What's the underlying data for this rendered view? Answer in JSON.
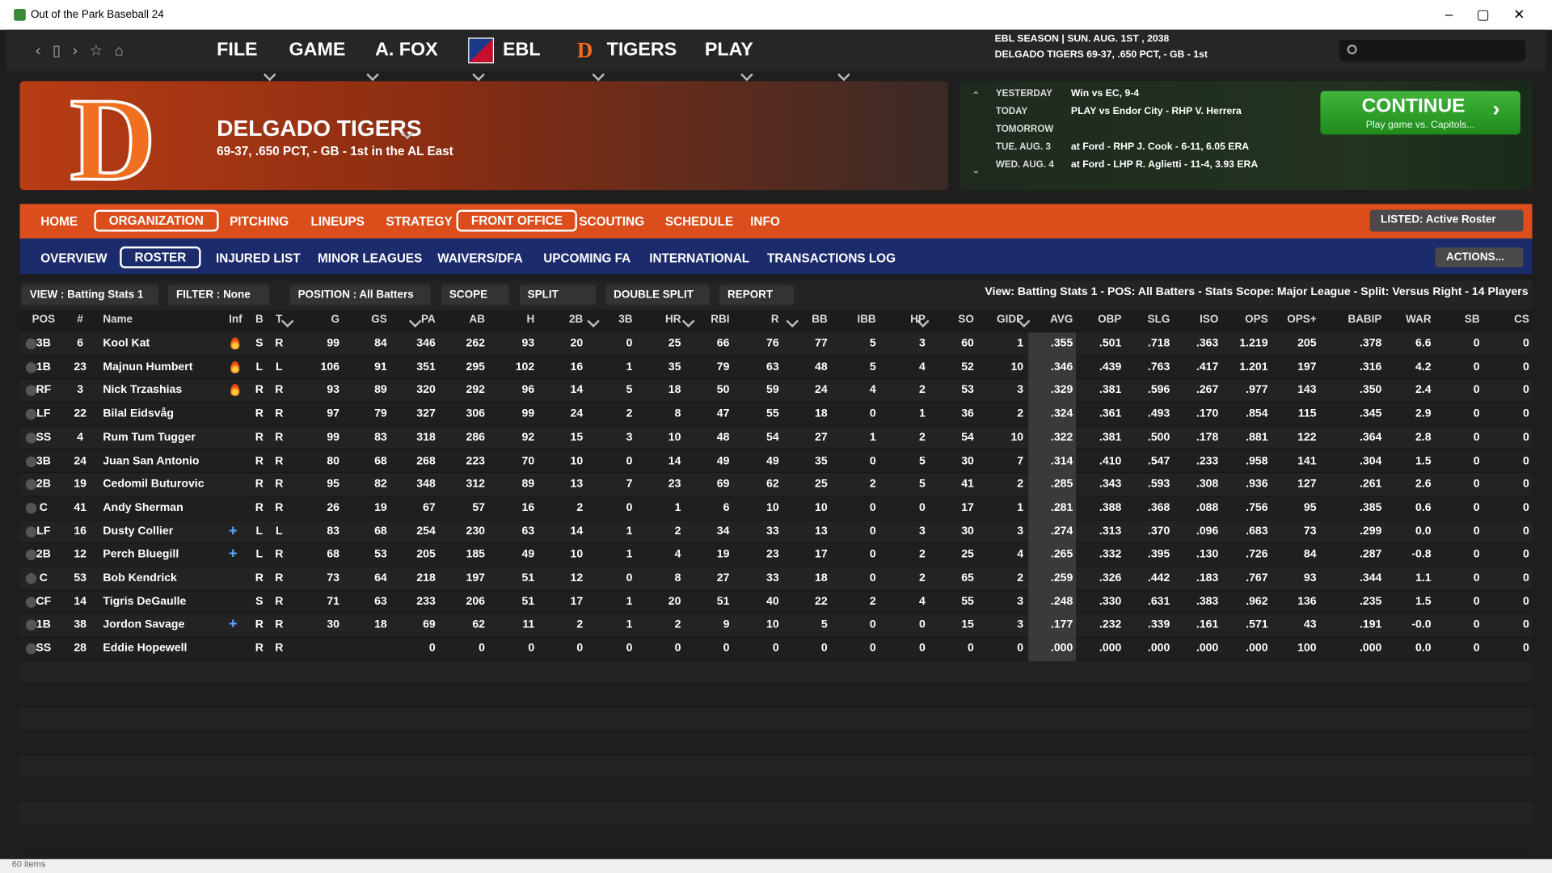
{
  "window": {
    "title": "Out of the Park Baseball 24",
    "status": "60 items"
  },
  "menu": [
    "FILE",
    "GAME",
    "A. FOX",
    "EBL",
    "TIGERS",
    "PLAY"
  ],
  "season": {
    "line1": "EBL SEASON  |  SUN. AUG. 1ST , 2038",
    "line2": "DELGADO TIGERS  69-37, .650 PCT, - GB - 1st"
  },
  "team": {
    "name": "DELGADO TIGERS",
    "record": "69-37, .650 PCT, - GB - 1st in the AL East"
  },
  "schedule": [
    {
      "day": "YESTERDAY",
      "info": "Win vs EC, 9-4"
    },
    {
      "day": "TODAY",
      "info": "PLAY vs Endor City - RHP V. Herrera"
    },
    {
      "day": "TOMORROW"
    },
    {
      "day": "TUE. AUG. 3",
      "info": "at Ford - RHP J. Cook - 6-11, 6.05 ERA"
    },
    {
      "day": "WED. AUG. 4",
      "info": "at Ford - LHP R. Aglietti - 11-4, 3.93 ERA"
    }
  ],
  "continue": {
    "label": "CONTINUE",
    "sub": "Play game vs. Capitols..."
  },
  "tabs": [
    {
      "label": "HOME"
    },
    {
      "label": "ORGANIZATION",
      "active": true
    },
    {
      "label": "PITCHING"
    },
    {
      "label": "LINEUPS"
    },
    {
      "label": "STRATEGY"
    },
    {
      "label": "FRONT OFFICE",
      "active": true
    },
    {
      "label": "SCOUTING"
    },
    {
      "label": "SCHEDULE"
    },
    {
      "label": "INFO"
    }
  ],
  "listed": "LISTED: Active Roster",
  "subtabs": [
    {
      "label": "OVERVIEW"
    },
    {
      "label": "ROSTER",
      "active": true
    },
    {
      "label": "INJURED LIST"
    },
    {
      "label": "MINOR LEAGUES"
    },
    {
      "label": "WAIVERS/DFA"
    },
    {
      "label": "UPCOMING FA"
    },
    {
      "label": "INTERNATIONAL"
    },
    {
      "label": "TRANSACTIONS LOG"
    }
  ],
  "actions": "ACTIONS...",
  "filters": [
    "VIEW : Batting Stats 1",
    "FILTER : None",
    "POSITION : All Batters",
    "SCOPE",
    "SPLIT",
    "DOUBLE SPLIT",
    "REPORT"
  ],
  "summary": "View: Batting Stats 1 - POS: All Batters - Stats Scope: Major League - Split: Versus Right - 14 Players",
  "table": {
    "columns": [
      "POS",
      "#",
      "Name",
      "Inf",
      "B",
      "T",
      "G",
      "GS",
      "PA",
      "AB",
      "H",
      "2B",
      "3B",
      "HR",
      "RBI",
      "R",
      "BB",
      "IBB",
      "HP",
      "SO",
      "GIDP",
      "AVG",
      "OBP",
      "SLG",
      "ISO",
      "OPS",
      "OPS+",
      "BABIP",
      "WAR",
      "SB",
      "CS"
    ],
    "rows": [
      {
        "icon": "hot",
        "cells": [
          "3B",
          "6",
          "Kool Kat",
          "S",
          "R",
          "99",
          "84",
          "346",
          "262",
          "93",
          "20",
          "0",
          "25",
          "66",
          "76",
          "77",
          "5",
          "3",
          "60",
          "1",
          ".355",
          ".501",
          ".718",
          ".363",
          "1.219",
          "205",
          ".378",
          "6.6",
          "0",
          "0"
        ]
      },
      {
        "icon": "hot",
        "cells": [
          "1B",
          "23",
          "Majnun Humbert",
          "L",
          "L",
          "106",
          "91",
          "351",
          "295",
          "102",
          "16",
          "1",
          "35",
          "79",
          "63",
          "48",
          "5",
          "4",
          "52",
          "10",
          ".346",
          ".439",
          ".763",
          ".417",
          "1.201",
          "197",
          ".316",
          "4.2",
          "0",
          "0"
        ]
      },
      {
        "icon": "hot",
        "cells": [
          "RF",
          "3",
          "Nick Trzashias",
          "R",
          "R",
          "93",
          "89",
          "320",
          "292",
          "96",
          "14",
          "5",
          "18",
          "50",
          "59",
          "24",
          "4",
          "2",
          "53",
          "3",
          ".329",
          ".381",
          ".596",
          ".267",
          ".977",
          "143",
          ".350",
          "2.4",
          "0",
          "0"
        ]
      },
      {
        "cells": [
          "LF",
          "22",
          "Bilal Eidsvåg",
          "R",
          "R",
          "97",
          "79",
          "327",
          "306",
          "99",
          "24",
          "2",
          "8",
          "47",
          "55",
          "18",
          "0",
          "1",
          "36",
          "2",
          ".324",
          ".361",
          ".493",
          ".170",
          ".854",
          "115",
          ".345",
          "2.9",
          "0",
          "0"
        ]
      },
      {
        "cells": [
          "SS",
          "4",
          "Rum Tum Tugger",
          "R",
          "R",
          "99",
          "83",
          "318",
          "286",
          "92",
          "15",
          "3",
          "10",
          "48",
          "54",
          "27",
          "1",
          "2",
          "54",
          "10",
          ".322",
          ".381",
          ".500",
          ".178",
          ".881",
          "122",
          ".364",
          "2.8",
          "0",
          "0"
        ]
      },
      {
        "cells": [
          "3B",
          "24",
          "Juan San Antonio",
          "R",
          "R",
          "80",
          "68",
          "268",
          "223",
          "70",
          "10",
          "0",
          "14",
          "49",
          "49",
          "35",
          "0",
          "5",
          "30",
          "7",
          ".314",
          ".410",
          ".547",
          ".233",
          ".958",
          "141",
          ".304",
          "1.5",
          "0",
          "0"
        ]
      },
      {
        "cells": [
          "2B",
          "19",
          "Cedomil Buturovic",
          "R",
          "R",
          "95",
          "82",
          "348",
          "312",
          "89",
          "13",
          "7",
          "23",
          "69",
          "62",
          "25",
          "2",
          "5",
          "41",
          "2",
          ".285",
          ".343",
          ".593",
          ".308",
          ".936",
          "127",
          ".261",
          "2.6",
          "0",
          "0"
        ]
      },
      {
        "cells": [
          "C",
          "41",
          "Andy Sherman",
          "R",
          "R",
          "26",
          "19",
          "67",
          "57",
          "16",
          "2",
          "0",
          "1",
          "6",
          "10",
          "10",
          "0",
          "0",
          "17",
          "1",
          ".281",
          ".388",
          ".368",
          ".088",
          ".756",
          "95",
          ".385",
          "0.6",
          "0",
          "0"
        ]
      },
      {
        "icon": "plus",
        "cells": [
          "LF",
          "16",
          "Dusty Collier",
          "L",
          "L",
          "83",
          "68",
          "254",
          "230",
          "63",
          "14",
          "1",
          "2",
          "34",
          "33",
          "13",
          "0",
          "3",
          "30",
          "3",
          ".274",
          ".313",
          ".370",
          ".096",
          ".683",
          "73",
          ".299",
          "0.0",
          "0",
          "0"
        ]
      },
      {
        "icon": "plus",
        "cells": [
          "2B",
          "12",
          "Perch Bluegill",
          "L",
          "R",
          "68",
          "53",
          "205",
          "185",
          "49",
          "10",
          "1",
          "4",
          "19",
          "23",
          "17",
          "0",
          "2",
          "25",
          "4",
          ".265",
          ".332",
          ".395",
          ".130",
          ".726",
          "84",
          ".287",
          "-0.8",
          "0",
          "0"
        ]
      },
      {
        "cells": [
          "C",
          "53",
          "Bob Kendrick",
          "R",
          "R",
          "73",
          "64",
          "218",
          "197",
          "51",
          "12",
          "0",
          "8",
          "27",
          "33",
          "18",
          "0",
          "2",
          "65",
          "2",
          ".259",
          ".326",
          ".442",
          ".183",
          ".767",
          "93",
          ".344",
          "1.1",
          "0",
          "0"
        ]
      },
      {
        "cells": [
          "CF",
          "14",
          "Tigris DeGaulle",
          "S",
          "R",
          "71",
          "63",
          "233",
          "206",
          "51",
          "17",
          "1",
          "20",
          "51",
          "40",
          "22",
          "2",
          "4",
          "55",
          "3",
          ".248",
          ".330",
          ".631",
          ".383",
          ".962",
          "136",
          ".235",
          "1.5",
          "0",
          "0"
        ]
      },
      {
        "icon": "plus",
        "cells": [
          "1B",
          "38",
          "Jordon Savage",
          "R",
          "R",
          "30",
          "18",
          "69",
          "62",
          "11",
          "2",
          "1",
          "2",
          "9",
          "10",
          "5",
          "0",
          "0",
          "15",
          "3",
          ".177",
          ".232",
          ".339",
          ".161",
          ".571",
          "43",
          ".191",
          "-0.0",
          "0",
          "0"
        ]
      },
      {
        "cells": [
          "SS",
          "28",
          "Eddie Hopewell",
          "R",
          "R",
          null,
          null,
          "0",
          "0",
          "0",
          "0",
          "0",
          "0",
          "0",
          "0",
          "0",
          "0",
          "0",
          "0",
          "0",
          ".000",
          ".000",
          ".000",
          ".000",
          ".000",
          "100",
          ".000",
          "0.0",
          "0",
          "0"
        ]
      }
    ]
  }
}
